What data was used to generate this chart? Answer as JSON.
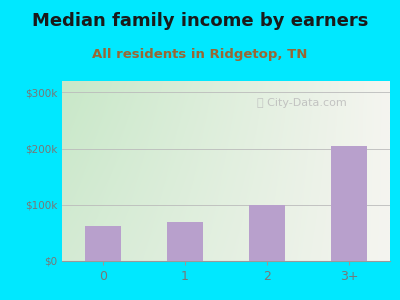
{
  "title": "Median family income by earners",
  "subtitle": "All residents in Ridgetop, TN",
  "categories": [
    "0",
    "1",
    "2",
    "3+"
  ],
  "values": [
    62000,
    70000,
    100000,
    205000
  ],
  "bar_color": "#b8a0cc",
  "background_outer": "#00e8ff",
  "background_inner_left": "#c8e8c8",
  "background_inner_right": "#f5f5f0",
  "title_color": "#1a1a1a",
  "subtitle_color": "#996633",
  "axis_color": "#777777",
  "ytick_labels": [
    "$0",
    "$100k",
    "$200k",
    "$300k"
  ],
  "ytick_values": [
    0,
    100000,
    200000,
    300000
  ],
  "ylim": [
    0,
    320000
  ],
  "watermark_text": "City-Data.com",
  "watermark_icon": "ⓘ",
  "title_fontsize": 13,
  "subtitle_fontsize": 9.5
}
